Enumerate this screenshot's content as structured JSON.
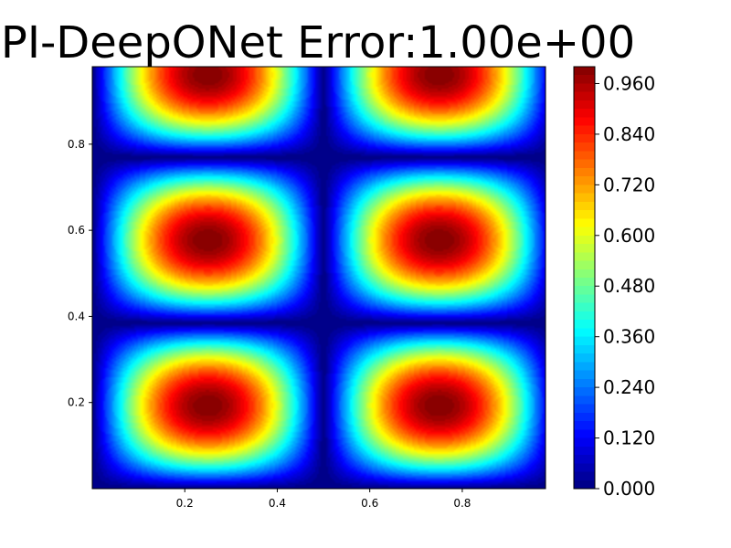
{
  "chart_data": {
    "type": "heatmap",
    "title": "PI-DeepONet Error:1.00e+00",
    "xlabel": "",
    "ylabel": "",
    "xlim": [
      0.0,
      0.98
    ],
    "ylim": [
      0.0,
      0.98
    ],
    "x_ticks": [
      0.2,
      0.4,
      0.6,
      0.8
    ],
    "x_tick_labels": [
      "0.2",
      "0.4",
      "0.6",
      "0.8"
    ],
    "y_ticks": [
      0.2,
      0.4,
      0.6,
      0.8
    ],
    "y_tick_labels": [
      "0.2",
      "0.4",
      "0.6",
      "0.8"
    ],
    "colorbar": {
      "min": 0.0,
      "max": 1.0,
      "ticks": [
        0.0,
        0.12,
        0.24,
        0.36,
        0.48,
        0.6,
        0.72,
        0.84,
        0.96
      ],
      "tick_labels": [
        "0.000",
        "0.120",
        "0.240",
        "0.360",
        "0.480",
        "0.600",
        "0.720",
        "0.840",
        "0.960"
      ],
      "colormap": "jet",
      "levels": 50
    },
    "field": "|sin(2πx)·sin(2.6πy)|",
    "field_peaks": [
      {
        "x": 0.26,
        "y": 0.19,
        "value": 1.0
      },
      {
        "x": 0.78,
        "y": 0.19,
        "value": 1.0
      },
      {
        "x": 0.26,
        "y": 0.59,
        "value": 1.0
      },
      {
        "x": 0.78,
        "y": 0.59,
        "value": 1.0
      },
      {
        "x": 0.26,
        "y": 0.98,
        "value": 1.0
      },
      {
        "x": 0.78,
        "y": 0.98,
        "value": 1.0
      }
    ]
  }
}
